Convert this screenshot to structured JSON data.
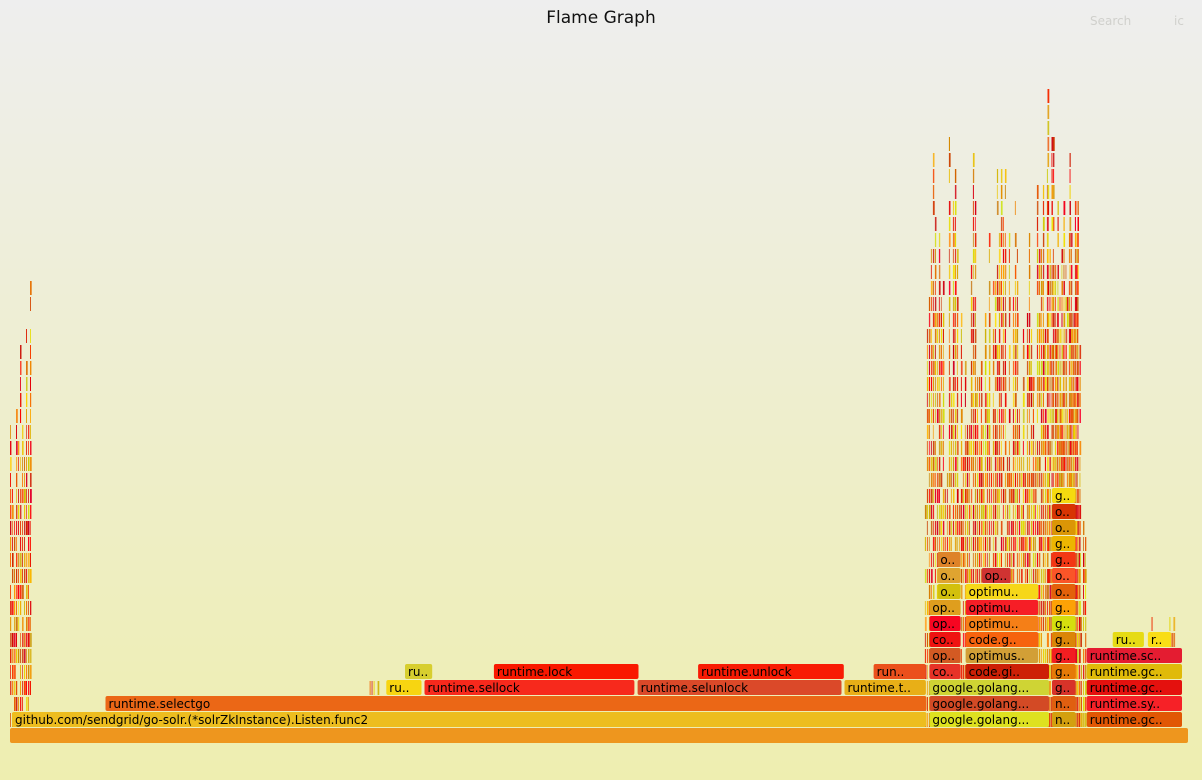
{
  "header": {
    "title": "Flame Graph",
    "search_label": "Search",
    "ic_label": "ic"
  },
  "colors": {
    "bg_top": "#eeeeee",
    "bg_bottom": "#eeeeb0"
  },
  "chart_data": {
    "type": "flame",
    "title": "Flame Graph",
    "units": "percent_of_total_width",
    "frames": [
      {
        "depth": 0,
        "start": 0.0,
        "width": 100.0,
        "label": ""
      },
      {
        "depth": 1,
        "start": 0.17,
        "width": 77.64,
        "label": "github.com/sendgrid/go-solr.(*solrZkInstance).Listen.func2"
      },
      {
        "depth": 1,
        "start": 77.98,
        "width": 10.23,
        "label": "google.golang..."
      },
      {
        "depth": 1,
        "start": 88.38,
        "width": 2.09,
        "label": "n.."
      },
      {
        "depth": 1,
        "start": 91.32,
        "width": 8.17,
        "label": "runtime.gc.."
      },
      {
        "depth": 2,
        "start": 8.1,
        "width": 69.71,
        "label": "runtime.selectgo"
      },
      {
        "depth": 2,
        "start": 77.98,
        "width": 10.23,
        "label": "google.golang..."
      },
      {
        "depth": 2,
        "start": 88.38,
        "width": 2.09,
        "label": "n.."
      },
      {
        "depth": 2,
        "start": 91.32,
        "width": 8.17,
        "label": "runtime.sy.."
      },
      {
        "depth": 3,
        "start": 31.92,
        "width": 3.07,
        "label": "ru.."
      },
      {
        "depth": 3,
        "start": 35.16,
        "width": 17.89,
        "label": "runtime.sellock"
      },
      {
        "depth": 3,
        "start": 53.23,
        "width": 17.38,
        "label": "runtime.selunlock"
      },
      {
        "depth": 3,
        "start": 70.78,
        "width": 6.99,
        "label": "runtime.t.."
      },
      {
        "depth": 3,
        "start": 77.98,
        "width": 10.23,
        "label": "google.golang..."
      },
      {
        "depth": 3,
        "start": 88.38,
        "width": 2.09,
        "label": "g.."
      },
      {
        "depth": 3,
        "start": 91.32,
        "width": 8.17,
        "label": "runtime.gc.."
      },
      {
        "depth": 4,
        "start": 33.5,
        "width": 2.39,
        "label": "ru.."
      },
      {
        "depth": 4,
        "start": 41.04,
        "width": 12.35,
        "label": "runtime.lock"
      },
      {
        "depth": 4,
        "start": 58.36,
        "width": 12.44,
        "label": "runtime.unlock"
      },
      {
        "depth": 4,
        "start": 73.25,
        "width": 4.52,
        "label": "run.."
      },
      {
        "depth": 4,
        "start": 77.98,
        "width": 2.73,
        "label": "co.."
      },
      {
        "depth": 4,
        "start": 81.05,
        "width": 7.16,
        "label": "code.gi.."
      },
      {
        "depth": 4,
        "start": 88.38,
        "width": 2.09,
        "label": "g.."
      },
      {
        "depth": 4,
        "start": 91.32,
        "width": 8.17,
        "label": "runtime.gc.."
      },
      {
        "depth": 5,
        "start": 77.98,
        "width": 2.73,
        "label": "op.."
      },
      {
        "depth": 5,
        "start": 81.05,
        "width": 6.24,
        "label": "optimus.."
      },
      {
        "depth": 5,
        "start": 88.38,
        "width": 2.09,
        "label": "g.."
      },
      {
        "depth": 5,
        "start": 91.32,
        "width": 8.17,
        "label": "runtime.sc.."
      },
      {
        "depth": 6,
        "start": 77.98,
        "width": 2.73,
        "label": "co.."
      },
      {
        "depth": 6,
        "start": 81.05,
        "width": 6.24,
        "label": "code.g.."
      },
      {
        "depth": 6,
        "start": 88.38,
        "width": 2.09,
        "label": "g.."
      },
      {
        "depth": 6,
        "start": 93.53,
        "width": 2.73,
        "label": "ru.."
      },
      {
        "depth": 6,
        "start": 96.51,
        "width": 2.05,
        "label": "r.."
      },
      {
        "depth": 7,
        "start": 77.98,
        "width": 2.73,
        "label": "op.."
      },
      {
        "depth": 7,
        "start": 81.05,
        "width": 6.24,
        "label": "optimu.."
      },
      {
        "depth": 7,
        "start": 88.38,
        "width": 2.09,
        "label": "g.."
      },
      {
        "depth": 8,
        "start": 77.98,
        "width": 2.73,
        "label": "op.."
      },
      {
        "depth": 8,
        "start": 81.05,
        "width": 6.24,
        "label": "optimu.."
      },
      {
        "depth": 8,
        "start": 88.38,
        "width": 2.09,
        "label": "g.."
      },
      {
        "depth": 9,
        "start": 78.66,
        "width": 2.05,
        "label": "o.."
      },
      {
        "depth": 9,
        "start": 81.05,
        "width": 6.24,
        "label": "optimu.."
      },
      {
        "depth": 9,
        "start": 88.38,
        "width": 2.09,
        "label": "o.."
      },
      {
        "depth": 10,
        "start": 78.66,
        "width": 2.05,
        "label": "o.."
      },
      {
        "depth": 10,
        "start": 82.41,
        "width": 2.56,
        "label": "op.."
      },
      {
        "depth": 10,
        "start": 88.38,
        "width": 2.09,
        "label": "o.."
      },
      {
        "depth": 11,
        "start": 78.66,
        "width": 2.05,
        "label": "o.."
      },
      {
        "depth": 11,
        "start": 88.38,
        "width": 2.09,
        "label": "g.."
      },
      {
        "depth": 12,
        "start": 88.38,
        "width": 2.09,
        "label": "g.."
      },
      {
        "depth": 13,
        "start": 88.38,
        "width": 2.09,
        "label": "o.."
      },
      {
        "depth": 14,
        "start": 88.38,
        "width": 2.09,
        "label": "o.."
      },
      {
        "depth": 15,
        "start": 88.38,
        "width": 2.09,
        "label": "g.."
      }
    ],
    "towers": [
      {
        "start": 0.0,
        "width": 1.7,
        "depth": 29
      },
      {
        "start": 30.5,
        "width": 0.9,
        "depth": 4
      },
      {
        "start": 74.5,
        "width": 0.4,
        "depth": 5
      },
      {
        "start": 77.6,
        "width": 12.9,
        "depth": 38
      },
      {
        "start": 88.0,
        "width": 2.8,
        "depth": 43
      },
      {
        "start": 90.5,
        "width": 0.8,
        "depth": 15
      },
      {
        "start": 96.3,
        "width": 2.5,
        "depth": 8
      }
    ]
  }
}
